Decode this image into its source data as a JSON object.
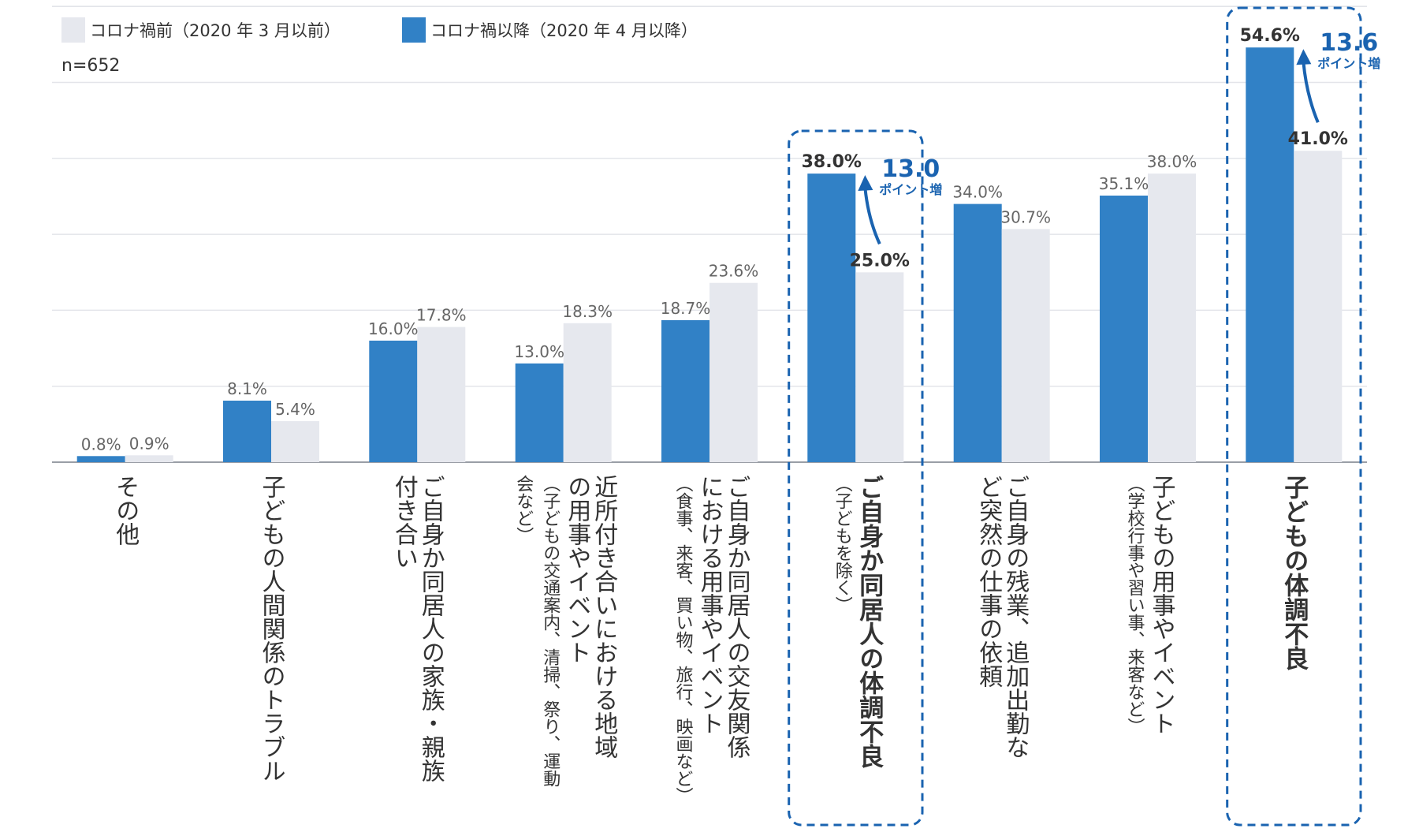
{
  "chart_data": {
    "type": "bar",
    "title": "",
    "xlabel": "",
    "ylabel": "",
    "n_label": "n=652",
    "ylim": [
      0,
      60
    ],
    "grid": true,
    "legend": "top-left",
    "colors": {
      "after": "#3181c6",
      "before": "#e6e8ee"
    },
    "series": [
      {
        "key": "after",
        "name": "コロナ禍以降（2020 年 4 月以降）",
        "values": [
          0.8,
          8.1,
          16.0,
          13.0,
          18.7,
          38.0,
          34.0,
          35.1,
          54.6
        ]
      },
      {
        "key": "before",
        "name": "コロナ禍前（2020 年 3 月以前）",
        "values": [
          0.9,
          5.4,
          17.8,
          18.3,
          23.6,
          25.0,
          30.7,
          38.0,
          41.0
        ]
      }
    ],
    "value_labels": {
      "after": [
        "0.8%",
        "8.1%",
        "16.0%",
        "13.0%",
        "18.7%",
        "38.0%",
        "34.0%",
        "35.1%",
        "54.6%"
      ],
      "before": [
        "0.9%",
        "5.4%",
        "17.8%",
        "18.3%",
        "23.6%",
        "25.0%",
        "30.7%",
        "38.0%",
        "41.0%"
      ]
    },
    "categories": [
      {
        "lines": [
          "その他"
        ],
        "sub": [],
        "highlight": false
      },
      {
        "lines": [
          "子どもの人間関係のトラブル"
        ],
        "sub": [],
        "highlight": false
      },
      {
        "lines": [
          "ご自身か同居人の家族・親族",
          "付き合い"
        ],
        "sub": [],
        "highlight": false
      },
      {
        "lines": [
          "近所付き合いにおける地域",
          "の用事やイベント"
        ],
        "sub": [
          "（子どもの交通案内、清掃、祭り、運動",
          "会など）"
        ],
        "highlight": false
      },
      {
        "lines": [
          "ご自身か同居人の交友関係",
          "における用事やイベント"
        ],
        "sub": [
          "（食事、来客、買い物、旅行、映画など）"
        ],
        "highlight": false
      },
      {
        "lines": [
          "ご自身か同居人の体調不良"
        ],
        "sub": [
          "（子どもを除く）"
        ],
        "highlight": true
      },
      {
        "lines": [
          "ご自身の残業、追加出勤な",
          "ど突然の仕事の依頼"
        ],
        "sub": [],
        "highlight": false
      },
      {
        "lines": [
          "子どもの用事やイベント"
        ],
        "sub": [
          "（学校行事や習い事、来客など）"
        ],
        "highlight": false
      },
      {
        "lines": [
          "子どもの体調不良"
        ],
        "sub": [],
        "highlight": true
      }
    ],
    "annotations": [
      {
        "category_index": 5,
        "value": "13.0",
        "unit": "ポイント増"
      },
      {
        "category_index": 8,
        "value": "13.6",
        "unit": "ポイント増"
      }
    ]
  }
}
